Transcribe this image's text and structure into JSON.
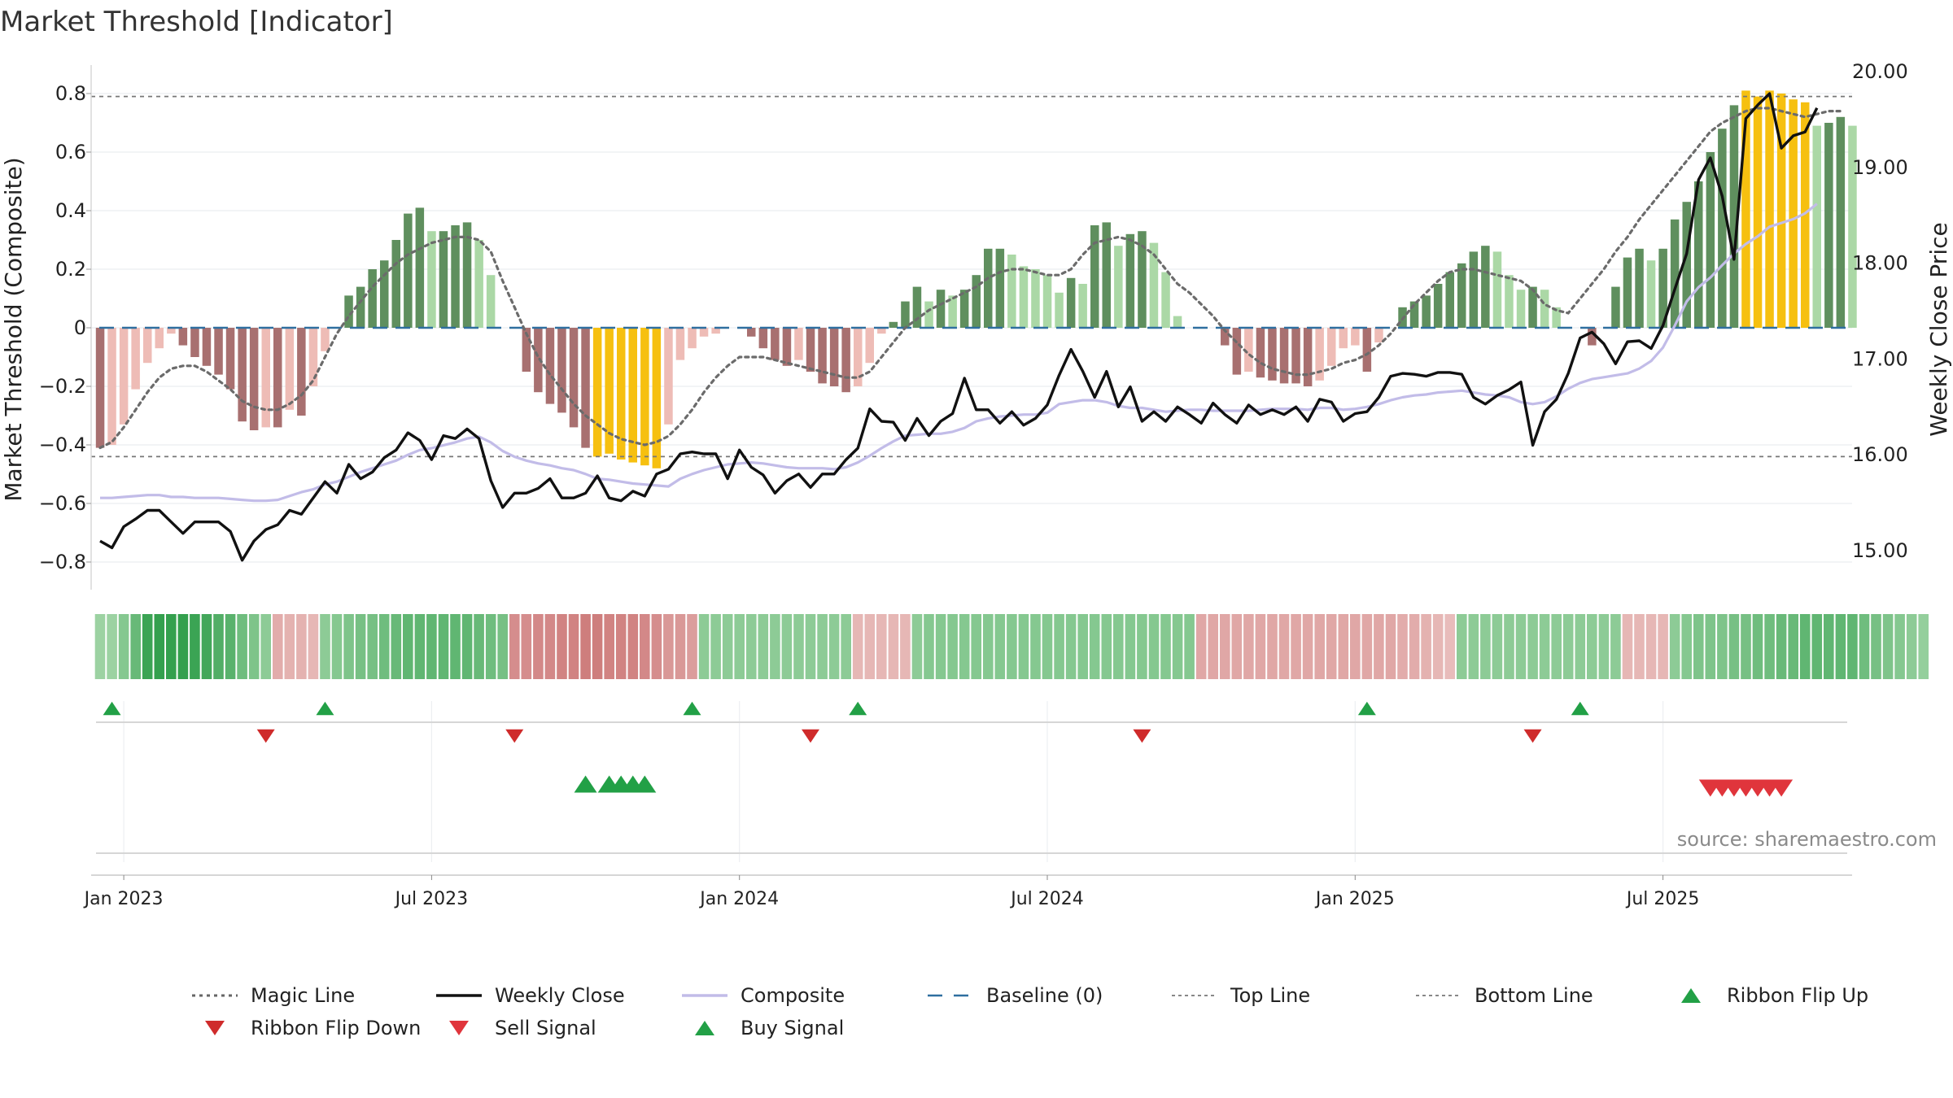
{
  "chart_data": {
    "type": "bar",
    "title": "Market Threshold [Indicator]",
    "ylabel_left": "Market Threshold (Composite)",
    "ylabel_right": "Weekly Close Price",
    "source": "source: sharemaestro.com",
    "ylim_left": [
      -0.9,
      0.85
    ],
    "ylim_right": [
      14.5,
      20.2
    ],
    "y_ticks_left": [
      -0.8,
      -0.6,
      -0.4,
      -0.2,
      0,
      0.2,
      0.4,
      0.6,
      0.8
    ],
    "y_tick_labels_left": [
      "−0.8",
      "−0.6",
      "−0.4",
      "−0.2",
      "0",
      "0.2",
      "0.4",
      "0.6",
      "0.8"
    ],
    "y_ticks_right": [
      15,
      16,
      17,
      18,
      19,
      20
    ],
    "y_tick_labels_right": [
      "15.00",
      "16.00",
      "17.00",
      "18.00",
      "19.00",
      "20.00"
    ],
    "x_tick_labels": [
      "Jan 2023",
      "Jul 2023",
      "Jan 2024",
      "Jul 2024",
      "Jan 2025",
      "Jul 2025"
    ],
    "x_tick_weeks": [
      2,
      28,
      54,
      80,
      106,
      132
    ],
    "top_line": 0.79,
    "bottom_line": -0.44,
    "baseline": 0,
    "legend": [
      {
        "label": "Magic Line",
        "symbol": "dotted-dark"
      },
      {
        "label": "Weekly Close",
        "symbol": "solid-black"
      },
      {
        "label": "Composite",
        "symbol": "solid-lavender"
      },
      {
        "label": "Baseline (0)",
        "symbol": "dashed-blue"
      },
      {
        "label": "Top Line",
        "symbol": "dotted-grey"
      },
      {
        "label": "Bottom Line",
        "symbol": "dotted-grey"
      },
      {
        "label": "Ribbon Flip Up",
        "symbol": "triangle-up-green"
      },
      {
        "label": "Ribbon Flip Down",
        "symbol": "triangle-down-red"
      },
      {
        "label": "Sell Signal",
        "symbol": "triangle-down-red"
      },
      {
        "label": "Buy Signal",
        "symbol": "triangle-up-green"
      }
    ],
    "composite_bars": [
      -0.41,
      -0.4,
      -0.33,
      -0.21,
      -0.12,
      -0.07,
      -0.02,
      -0.06,
      -0.1,
      -0.13,
      -0.16,
      -0.21,
      -0.32,
      -0.35,
      -0.34,
      -0.34,
      -0.28,
      -0.3,
      -0.2,
      -0.08,
      0,
      0.11,
      0.14,
      0.2,
      0.23,
      0.3,
      0.39,
      0.41,
      0.33,
      0.33,
      0.35,
      0.36,
      0.3,
      0.18,
      0,
      0,
      -0.15,
      -0.22,
      -0.26,
      -0.29,
      -0.34,
      -0.41,
      -0.44,
      -0.43,
      -0.45,
      -0.46,
      -0.47,
      -0.48,
      -0.33,
      -0.11,
      -0.07,
      -0.03,
      -0.02,
      0,
      0,
      -0.03,
      -0.07,
      -0.11,
      -0.13,
      -0.11,
      -0.15,
      -0.19,
      -0.2,
      -0.22,
      -0.2,
      -0.12,
      -0.02,
      0.02,
      0.09,
      0.14,
      0.09,
      0.13,
      0.11,
      0.13,
      0.18,
      0.27,
      0.27,
      0.25,
      0.21,
      0.2,
      0.18,
      0.12,
      0.17,
      0.15,
      0.35,
      0.36,
      0.28,
      0.32,
      0.33,
      0.29,
      0.19,
      0.04,
      0,
      0,
      0,
      -0.06,
      -0.16,
      -0.15,
      -0.17,
      -0.18,
      -0.19,
      -0.19,
      -0.2,
      -0.18,
      -0.13,
      -0.07,
      -0.06,
      -0.15,
      -0.05,
      0,
      0.07,
      0.09,
      0.11,
      0.15,
      0.19,
      0.22,
      0.26,
      0.28,
      0.26,
      0.18,
      0.13,
      0.14,
      0.13,
      0.07,
      0,
      0,
      -0.06,
      0,
      0.14,
      0.24,
      0.27,
      0.23,
      0.27,
      0.37,
      0.43,
      0.5,
      0.6,
      0.68,
      0.76,
      0.81,
      0.79,
      0.81,
      0.8,
      0.78,
      0.77,
      0.69,
      0.7,
      0.72,
      0.69
    ],
    "magic_line": [
      -0.41,
      -0.39,
      -0.34,
      -0.28,
      -0.22,
      -0.17,
      -0.14,
      -0.13,
      -0.13,
      -0.15,
      -0.18,
      -0.21,
      -0.25,
      -0.27,
      -0.28,
      -0.28,
      -0.26,
      -0.23,
      -0.18,
      -0.1,
      -0.02,
      0.04,
      0.09,
      0.14,
      0.18,
      0.22,
      0.25,
      0.27,
      0.29,
      0.3,
      0.31,
      0.31,
      0.3,
      0.26,
      0.16,
      0.07,
      -0.02,
      -0.1,
      -0.16,
      -0.21,
      -0.26,
      -0.3,
      -0.33,
      -0.36,
      -0.38,
      -0.39,
      -0.4,
      -0.39,
      -0.37,
      -0.33,
      -0.28,
      -0.22,
      -0.17,
      -0.13,
      -0.1,
      -0.1,
      -0.1,
      -0.11,
      -0.12,
      -0.13,
      -0.14,
      -0.15,
      -0.16,
      -0.17,
      -0.17,
      -0.15,
      -0.1,
      -0.05,
      0,
      0.03,
      0.06,
      0.08,
      0.1,
      0.12,
      0.14,
      0.17,
      0.19,
      0.2,
      0.2,
      0.19,
      0.18,
      0.18,
      0.2,
      0.25,
      0.29,
      0.3,
      0.31,
      0.3,
      0.28,
      0.25,
      0.2,
      0.15,
      0.12,
      0.08,
      0.04,
      -0.01,
      -0.05,
      -0.09,
      -0.12,
      -0.14,
      -0.15,
      -0.16,
      -0.16,
      -0.15,
      -0.14,
      -0.12,
      -0.11,
      -0.09,
      -0.06,
      -0.02,
      0.03,
      0.08,
      0.12,
      0.16,
      0.19,
      0.2,
      0.2,
      0.19,
      0.18,
      0.17,
      0.16,
      0.13,
      0.08,
      0.06,
      0.05,
      0.1,
      0.15,
      0.2,
      0.26,
      0.31,
      0.37,
      0.42,
      0.47,
      0.52,
      0.57,
      0.62,
      0.67,
      0.7,
      0.72,
      0.74,
      0.75,
      0.75,
      0.74,
      0.73,
      0.72,
      0.73,
      0.74,
      0.74
    ],
    "weekly_close": [
      15.1,
      15.03,
      15.25,
      15.33,
      15.42,
      15.42,
      15.3,
      15.18,
      15.3,
      15.3,
      15.3,
      15.2,
      14.9,
      15.1,
      15.22,
      15.27,
      15.42,
      15.38,
      15.55,
      15.72,
      15.6,
      15.9,
      15.75,
      15.82,
      15.97,
      16.05,
      16.23,
      16.15,
      15.95,
      16.2,
      16.17,
      16.27,
      16.17,
      15.73,
      15.45,
      15.6,
      15.6,
      15.65,
      15.75,
      15.55,
      15.55,
      15.6,
      15.78,
      15.55,
      15.52,
      15.62,
      15.57,
      15.8,
      15.85,
      16.01,
      16.03,
      16.01,
      16.01,
      15.75,
      16.05,
      15.87,
      15.79,
      15.6,
      15.73,
      15.8,
      15.66,
      15.8,
      15.8,
      15.95,
      16.07,
      16.48,
      16.35,
      16.34,
      16.15,
      16.38,
      16.2,
      16.35,
      16.43,
      16.8,
      16.47,
      16.47,
      16.33,
      16.45,
      16.31,
      16.38,
      16.52,
      16.83,
      17.1,
      16.87,
      16.6,
      16.87,
      16.5,
      16.71,
      16.35,
      16.45,
      16.35,
      16.5,
      16.42,
      16.33,
      16.54,
      16.42,
      16.33,
      16.52,
      16.42,
      16.47,
      16.42,
      16.5,
      16.35,
      16.58,
      16.55,
      16.35,
      16.43,
      16.45,
      16.6,
      16.82,
      16.85,
      16.84,
      16.82,
      16.86,
      16.86,
      16.84,
      16.6,
      16.53,
      16.62,
      16.68,
      16.76,
      16.1,
      16.45,
      16.58,
      16.85,
      17.22,
      17.28,
      17.16,
      16.95,
      17.18,
      17.19,
      17.11,
      17.35,
      17.73,
      18.1,
      18.87,
      19.1,
      18.7,
      18.04,
      19.51,
      19.65,
      19.77,
      19.2,
      19.33,
      19.37,
      19.62
    ],
    "composite_line": [
      15.55,
      15.55,
      15.56,
      15.57,
      15.58,
      15.58,
      15.56,
      15.56,
      15.55,
      15.55,
      15.55,
      15.54,
      15.53,
      15.52,
      15.52,
      15.53,
      15.57,
      15.61,
      15.64,
      15.69,
      15.72,
      15.77,
      15.82,
      15.86,
      15.9,
      15.94,
      16.0,
      16.05,
      16.07,
      16.1,
      16.13,
      16.17,
      16.19,
      16.13,
      16.04,
      15.98,
      15.94,
      15.91,
      15.89,
      15.86,
      15.84,
      15.8,
      15.75,
      15.74,
      15.72,
      15.7,
      15.69,
      15.68,
      15.67,
      15.75,
      15.8,
      15.84,
      15.87,
      15.9,
      15.91,
      15.92,
      15.91,
      15.89,
      15.87,
      15.86,
      15.86,
      15.86,
      15.85,
      15.87,
      15.92,
      15.99,
      16.07,
      16.14,
      16.2,
      16.21,
      16.22,
      16.22,
      16.24,
      16.28,
      16.35,
      16.38,
      16.4,
      16.41,
      16.42,
      16.42,
      16.44,
      16.53,
      16.55,
      16.57,
      16.57,
      16.55,
      16.51,
      16.49,
      16.49,
      16.47,
      16.45,
      16.46,
      16.47,
      16.47,
      16.46,
      16.46,
      16.46,
      16.46,
      16.47,
      16.48,
      16.48,
      16.48,
      16.47,
      16.49,
      16.49,
      16.47,
      16.48,
      16.5,
      16.53,
      16.57,
      16.6,
      16.62,
      16.63,
      16.65,
      16.66,
      16.67,
      16.65,
      16.63,
      16.62,
      16.6,
      16.55,
      16.53,
      16.55,
      16.61,
      16.69,
      16.75,
      16.79,
      16.81,
      16.83,
      16.85,
      16.9,
      16.98,
      17.12,
      17.35,
      17.6,
      17.75,
      17.85,
      17.98,
      18.1,
      18.2,
      18.28,
      18.38,
      18.42,
      18.46,
      18.52,
      18.62
    ],
    "ribbon": [
      0.3,
      0.3,
      0.45,
      0.65,
      0.95,
      1.0,
      1.0,
      1.0,
      0.95,
      0.9,
      0.8,
      0.75,
      0.6,
      0.5,
      0.4,
      -0.4,
      -0.35,
      -0.35,
      -0.3,
      0.4,
      0.45,
      0.5,
      0.55,
      0.55,
      0.6,
      0.65,
      0.7,
      0.7,
      0.7,
      0.7,
      0.7,
      0.7,
      0.65,
      0.6,
      0.55,
      -0.7,
      -0.7,
      -0.75,
      -0.75,
      -0.8,
      -0.8,
      -0.85,
      -0.85,
      -0.8,
      -0.8,
      -0.8,
      -0.75,
      -0.7,
      -0.6,
      -0.6,
      -0.55,
      0.4,
      0.4,
      0.4,
      0.4,
      0.4,
      0.4,
      0.4,
      0.4,
      0.4,
      0.4,
      0.4,
      0.4,
      0.4,
      -0.3,
      -0.3,
      -0.3,
      -0.3,
      -0.3,
      0.4,
      0.45,
      0.45,
      0.45,
      0.45,
      0.45,
      0.45,
      0.45,
      0.45,
      0.45,
      0.45,
      0.45,
      0.45,
      0.45,
      0.45,
      0.45,
      0.45,
      0.45,
      0.45,
      0.45,
      0.45,
      0.45,
      0.45,
      0.45,
      -0.45,
      -0.45,
      -0.45,
      -0.45,
      -0.45,
      -0.45,
      -0.45,
      -0.45,
      -0.45,
      -0.45,
      -0.45,
      -0.45,
      -0.45,
      -0.45,
      -0.45,
      -0.45,
      -0.45,
      -0.4,
      -0.4,
      -0.35,
      -0.3,
      -0.25,
      0.4,
      0.4,
      0.4,
      0.4,
      0.4,
      0.4,
      0.4,
      0.4,
      0.4,
      0.4,
      0.4,
      0.4,
      0.4,
      0.4,
      -0.3,
      -0.3,
      -0.3,
      -0.3,
      0.4,
      0.45,
      0.5,
      0.5,
      0.5,
      0.55,
      0.55,
      0.6,
      0.6,
      0.65,
      0.65,
      0.7,
      0.7,
      0.7,
      0.7,
      0.7,
      0.6,
      0.55,
      0.5,
      0.45,
      0.4,
      0.35
    ],
    "ribbon_flip_up_weeks": [
      1,
      19,
      50,
      64,
      107,
      125
    ],
    "ribbon_flip_down_weeks": [
      14,
      35,
      60,
      88,
      121
    ],
    "buy_signal_weeks": [
      41,
      43,
      44,
      45,
      46
    ],
    "sell_signal_weeks": [
      136,
      137,
      138,
      139,
      140,
      141,
      142
    ]
  }
}
